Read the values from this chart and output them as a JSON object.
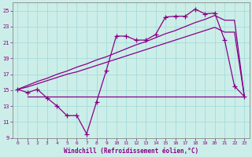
{
  "xlabel": "Windchill (Refroidissement éolien,°C)",
  "bg_color": "#cceee8",
  "line_color": "#880088",
  "grid_color": "#aadddd",
  "ylim": [
    9,
    26
  ],
  "xlim": [
    -0.5,
    23.5
  ],
  "yticks": [
    9,
    11,
    13,
    15,
    17,
    19,
    21,
    23,
    25
  ],
  "xticks": [
    0,
    1,
    2,
    3,
    4,
    5,
    6,
    7,
    8,
    9,
    10,
    11,
    12,
    13,
    14,
    15,
    16,
    17,
    18,
    19,
    20,
    21,
    22,
    23
  ],
  "zigzag_x": [
    0,
    1,
    2,
    3,
    4,
    5,
    6,
    7,
    8,
    9,
    10,
    11,
    12,
    13,
    14,
    15,
    16,
    17,
    18,
    19,
    20,
    21,
    22,
    23
  ],
  "zigzag_y": [
    15.1,
    14.7,
    15.1,
    14.0,
    13.0,
    11.8,
    11.8,
    9.5,
    13.5,
    17.5,
    21.8,
    21.8,
    21.3,
    21.3,
    22.0,
    24.2,
    24.3,
    24.3,
    25.2,
    24.6,
    24.7,
    21.3,
    15.5,
    14.2
  ],
  "line1_x": [
    0,
    1,
    2,
    3,
    4,
    5,
    6,
    7,
    8,
    9,
    10,
    11,
    12,
    13,
    14,
    15,
    16,
    17,
    18,
    19,
    20,
    21,
    22,
    23
  ],
  "line1_y": [
    15.1,
    15.6,
    16.1,
    16.5,
    17.0,
    17.4,
    17.9,
    18.3,
    18.8,
    19.2,
    19.7,
    20.2,
    20.7,
    21.1,
    21.6,
    22.1,
    22.5,
    23.0,
    23.5,
    23.9,
    24.4,
    23.8,
    23.8,
    14.2
  ],
  "line2_x": [
    0,
    1,
    2,
    3,
    4,
    5,
    6,
    7,
    8,
    9,
    10,
    11,
    12,
    13,
    14,
    15,
    16,
    17,
    18,
    19,
    20,
    21,
    22,
    23
  ],
  "line2_y": [
    15.1,
    15.4,
    15.8,
    16.2,
    16.6,
    17.0,
    17.3,
    17.7,
    18.1,
    18.5,
    18.9,
    19.3,
    19.7,
    20.1,
    20.5,
    20.9,
    21.3,
    21.7,
    22.1,
    22.5,
    22.9,
    22.3,
    22.3,
    14.2
  ],
  "hline_x": [
    1,
    23
  ],
  "hline_y": 14.2
}
